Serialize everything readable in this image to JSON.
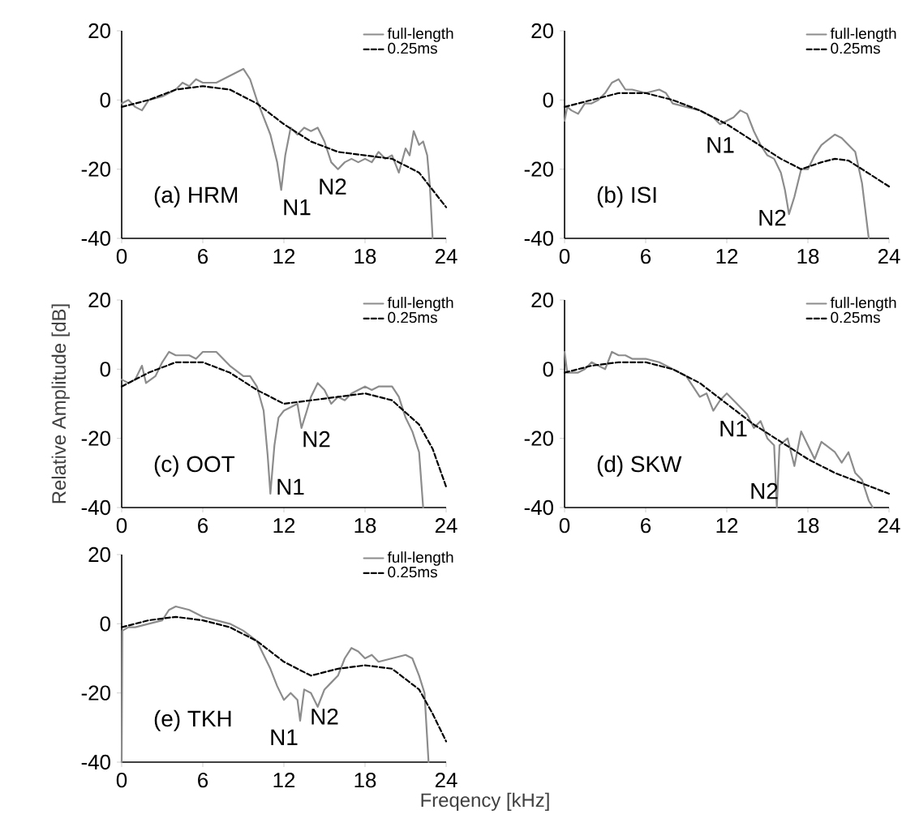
{
  "chart_data": [
    {
      "type": "line",
      "xlim": [
        0,
        24
      ],
      "ylim": [
        -40,
        20
      ],
      "xticks": [
        0,
        6,
        12,
        18,
        24
      ],
      "yticks": [
        -40,
        -20,
        0,
        20
      ],
      "legend": "top right",
      "annotations": [
        "(a) HRM",
        "N1",
        "N2"
      ],
      "series": [
        {
          "name": "full-length",
          "color": "#8c8c8c",
          "line_style": "solid",
          "x": [
            0,
            0.5,
            1,
            1.5,
            2,
            3,
            4,
            4.5,
            5,
            5.5,
            6,
            7,
            7.5,
            8,
            8.5,
            9,
            9.5,
            10,
            10.5,
            11,
            11.5,
            11.8,
            12.1,
            12.5,
            13,
            13.5,
            14,
            14.5,
            15,
            15.5,
            16,
            16.5,
            17,
            17.5,
            18,
            18.5,
            19,
            19.5,
            20,
            20.5,
            21,
            21.3,
            21.6,
            22,
            22.3,
            22.6,
            22.8,
            23
          ],
          "values": [
            -1,
            0,
            -2,
            -3,
            0,
            1,
            3,
            5,
            4,
            6,
            5,
            5,
            6,
            7,
            8,
            9,
            6,
            0,
            -5,
            -10,
            -18,
            -26,
            -16,
            -8,
            -10,
            -8,
            -9,
            -8,
            -12,
            -18,
            -20,
            -18,
            -17,
            -18,
            -17,
            -18,
            -15,
            -17,
            -16,
            -21,
            -14,
            -16,
            -9,
            -13,
            -12,
            -16,
            -25,
            -40
          ]
        },
        {
          "name": "0.25ms",
          "color": "#000000",
          "line_style": "dashed",
          "x": [
            0,
            2,
            4,
            6,
            8,
            10,
            12,
            14,
            16,
            18,
            20,
            22,
            24
          ],
          "values": [
            -2,
            0,
            3,
            4,
            3,
            -1,
            -7,
            -12,
            -15,
            -16,
            -17,
            -21,
            -31
          ]
        }
      ]
    },
    {
      "type": "line",
      "xlim": [
        0,
        24
      ],
      "ylim": [
        -40,
        20
      ],
      "xticks": [
        0,
        6,
        12,
        18,
        24
      ],
      "yticks": [
        -40,
        -20,
        0,
        20
      ],
      "legend": "top right",
      "annotations": [
        "(b) ISI",
        "N1",
        "N2"
      ],
      "series": [
        {
          "name": "full-length",
          "color": "#8c8c8c",
          "line_style": "solid",
          "x": [
            0,
            0.2,
            0.5,
            1,
            1.5,
            2,
            2.5,
            3,
            3.5,
            4,
            4.5,
            5,
            6,
            7,
            7.5,
            8,
            9,
            10,
            11,
            11.5,
            12,
            12.5,
            13,
            13.5,
            14,
            14.5,
            15,
            15.5,
            16,
            16.3,
            16.6,
            17,
            17.5,
            18,
            18.5,
            19,
            20,
            20.5,
            21,
            21.5,
            22,
            22.5
          ],
          "values": [
            -6,
            -2,
            -3,
            -4,
            -1,
            -1,
            0,
            2,
            5,
            6,
            3,
            3,
            2,
            3,
            2,
            -1,
            -2,
            -3,
            -5,
            -7,
            -6,
            -5,
            -3,
            -4,
            -9,
            -13,
            -16,
            -17,
            -21,
            -26,
            -33,
            -28,
            -20,
            -20,
            -16,
            -13,
            -10,
            -11,
            -13,
            -15,
            -24,
            -40
          ]
        },
        {
          "name": "0.25ms",
          "color": "#000000",
          "line_style": "dashed",
          "x": [
            0,
            2,
            4,
            6,
            8,
            10,
            12,
            14,
            16,
            17.5,
            19,
            20,
            21,
            22,
            24
          ],
          "values": [
            -2,
            0,
            2,
            2,
            0,
            -3,
            -7,
            -12,
            -17,
            -20,
            -18,
            -17,
            -17.5,
            -20,
            -25
          ]
        }
      ]
    },
    {
      "type": "line",
      "xlim": [
        0,
        24
      ],
      "ylim": [
        -40,
        20
      ],
      "xticks": [
        0,
        6,
        12,
        18,
        24
      ],
      "yticks": [
        -40,
        -20,
        0,
        20
      ],
      "legend": "top right",
      "ylabel": "Relative Amplitude [dB]",
      "annotations": [
        "(c) OOT",
        "N1",
        "N2"
      ],
      "series": [
        {
          "name": "full-length",
          "color": "#8c8c8c",
          "line_style": "solid",
          "x": [
            0,
            0.5,
            1,
            1.5,
            1.8,
            2.5,
            3,
            3.5,
            4,
            5,
            5.5,
            6,
            7,
            7.5,
            8,
            9,
            9.5,
            10,
            10.5,
            10.8,
            11,
            11.3,
            11.6,
            12,
            12.5,
            13,
            13.3,
            13.7,
            14,
            14.5,
            15,
            15.5,
            16,
            16.5,
            17,
            18,
            18.5,
            19,
            20,
            20.5,
            21,
            21.5,
            22,
            22.3
          ],
          "values": [
            -3,
            -4,
            -3,
            1,
            -4,
            -2,
            2,
            5,
            4,
            4,
            3,
            5,
            5,
            3,
            1,
            -2,
            -2,
            -5,
            -12,
            -25,
            -36,
            -22,
            -14,
            -12,
            -11,
            -10,
            -17,
            -12,
            -8,
            -4,
            -6,
            -10,
            -8,
            -9,
            -7,
            -5,
            -6,
            -5,
            -5,
            -8,
            -14,
            -18,
            -24,
            -40
          ]
        },
        {
          "name": "0.25ms",
          "color": "#000000",
          "line_style": "dashed",
          "x": [
            0,
            2,
            4,
            6,
            8,
            10,
            12,
            14,
            16,
            18,
            20,
            22,
            23,
            24
          ],
          "values": [
            -5,
            -1,
            2,
            2,
            -1,
            -6,
            -10,
            -9,
            -8,
            -7,
            -9,
            -16,
            -23,
            -34
          ]
        }
      ]
    },
    {
      "type": "line",
      "xlim": [
        0,
        24
      ],
      "ylim": [
        -40,
        20
      ],
      "xticks": [
        0,
        6,
        12,
        18,
        24
      ],
      "yticks": [
        -40,
        -20,
        0,
        20
      ],
      "legend": "top right",
      "annotations": [
        "(d) SKW",
        "N1",
        "N2"
      ],
      "series": [
        {
          "name": "full-length",
          "color": "#8c8c8c",
          "line_style": "solid",
          "x": [
            0,
            0.2,
            1,
            1.5,
            2,
            2.5,
            3,
            3.5,
            4,
            4.5,
            5,
            6,
            7,
            8,
            9,
            9.5,
            10,
            10.5,
            11,
            11.5,
            12,
            13,
            13.5,
            14,
            14.5,
            15,
            15.5,
            15.7,
            15.9,
            16.5,
            17,
            17.5,
            18,
            18.5,
            19,
            20,
            20.5,
            21,
            21.5,
            22,
            22.5,
            22.8
          ],
          "values": [
            5,
            -1,
            -1,
            0,
            2,
            1,
            0,
            5,
            4,
            4,
            3,
            3,
            2,
            0,
            -2,
            -5,
            -8,
            -7,
            -12,
            -9,
            -7,
            -11,
            -13,
            -17,
            -15,
            -20,
            -22,
            -40,
            -22,
            -20,
            -28,
            -18,
            -22,
            -26,
            -21,
            -24,
            -27,
            -24,
            -30,
            -32,
            -38,
            -40
          ]
        },
        {
          "name": "0.25ms",
          "color": "#000000",
          "line_style": "dashed",
          "x": [
            0,
            2,
            4,
            6,
            8,
            10,
            12,
            14,
            16,
            18,
            20,
            22,
            24
          ],
          "values": [
            -1,
            1,
            2,
            2,
            0,
            -4,
            -10,
            -16,
            -21,
            -26,
            -30,
            -33,
            -36
          ]
        }
      ]
    },
    {
      "type": "line",
      "xlim": [
        0,
        24
      ],
      "ylim": [
        -40,
        20
      ],
      "xticks": [
        0,
        6,
        12,
        18,
        24
      ],
      "yticks": [
        -40,
        -20,
        0,
        20
      ],
      "legend": "top right",
      "xlabel": "Freqency [kHz]",
      "annotations": [
        "(e) TKH",
        "N1",
        "N2"
      ],
      "series": [
        {
          "name": "full-length",
          "color": "#8c8c8c",
          "line_style": "solid",
          "x": [
            0,
            0.05,
            0.5,
            1,
            2,
            3,
            3.5,
            4,
            5,
            5.5,
            6,
            7,
            8,
            9,
            10,
            10.5,
            11,
            11.5,
            12,
            12.5,
            13,
            13.2,
            13.5,
            14,
            14.5,
            15,
            15.5,
            16,
            16.5,
            17,
            17.5,
            18,
            18.5,
            19,
            20,
            21,
            21.5,
            22,
            22.4,
            22.7
          ],
          "values": [
            -40,
            -2,
            -1,
            -1,
            0,
            1,
            4,
            5,
            4,
            3,
            2,
            1,
            0,
            -2,
            -5,
            -9,
            -13,
            -18,
            -22,
            -20,
            -22,
            -28,
            -19,
            -20,
            -24,
            -19,
            -17,
            -15,
            -10,
            -7,
            -8,
            -10,
            -9,
            -11,
            -10,
            -9,
            -10,
            -15,
            -20,
            -40
          ]
        },
        {
          "name": "0.25ms",
          "color": "#000000",
          "line_style": "dashed",
          "x": [
            0,
            2,
            4,
            6,
            8,
            10,
            12,
            14,
            16,
            18,
            20,
            22,
            23,
            24
          ],
          "values": [
            -1,
            1,
            2,
            1,
            -1,
            -5,
            -11,
            -15,
            -13,
            -12,
            -13,
            -19,
            -26,
            -34
          ]
        }
      ]
    }
  ]
}
